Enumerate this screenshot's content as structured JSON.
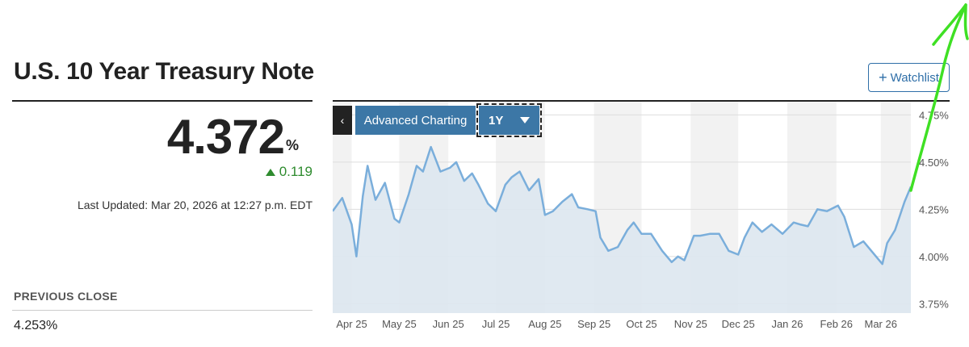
{
  "header": {
    "title": "U.S. 10 Year Treasury Note",
    "watchlist_label": "Watchlist"
  },
  "quote": {
    "price": "4.372",
    "unit": "%",
    "change": "0.119",
    "last_updated": "Last Updated: Mar 20, 2026 at 12:27 p.m. EDT"
  },
  "previous_close": {
    "label": "PREVIOUS CLOSE",
    "value": "4.253%"
  },
  "toolbar": {
    "advanced_label": "Advanced Charting",
    "range_value": "1Y"
  },
  "colors": {
    "line": "#7aaedb",
    "area": "#dde7ef",
    "band": "#f2f2f2",
    "gain": "#2e8b2e",
    "button": "#3c77a6",
    "annotation": "#3fe024"
  },
  "chart_data": {
    "type": "area",
    "title": "",
    "xlabel": "",
    "ylabel": "",
    "ylim": [
      3.7,
      4.82
    ],
    "xlim": [
      "2025-03-20",
      "2026-03-20"
    ],
    "yticks": [
      3.75,
      4.0,
      4.25,
      4.5,
      4.75
    ],
    "ytick_labels": [
      "3.75%",
      "4.00%",
      "4.25%",
      "4.50%",
      "4.75%"
    ],
    "xticks": [
      "2025-04-01",
      "2025-05-01",
      "2025-06-01",
      "2025-07-01",
      "2025-08-01",
      "2025-09-01",
      "2025-10-01",
      "2025-11-01",
      "2025-12-01",
      "2026-01-01",
      "2026-02-01",
      "2026-03-01"
    ],
    "xtick_labels": [
      "Apr 25",
      "May 25",
      "Jun 25",
      "Jul 25",
      "Aug 25",
      "Sep 25",
      "Oct 25",
      "Nov 25",
      "Dec 25",
      "Jan 26",
      "Feb 26",
      "Mar 26"
    ],
    "series": [
      {
        "x": [
          "2025-03-20",
          "2025-03-26",
          "2025-04-01",
          "2025-04-04",
          "2025-04-08",
          "2025-04-11",
          "2025-04-16",
          "2025-04-22",
          "2025-04-28",
          "2025-05-01",
          "2025-05-07",
          "2025-05-12",
          "2025-05-16",
          "2025-05-21",
          "2025-05-27",
          "2025-06-02",
          "2025-06-06",
          "2025-06-11",
          "2025-06-16",
          "2025-06-20",
          "2025-06-26",
          "2025-07-01",
          "2025-07-07",
          "2025-07-11",
          "2025-07-16",
          "2025-07-22",
          "2025-07-28",
          "2025-08-01",
          "2025-08-06",
          "2025-08-12",
          "2025-08-18",
          "2025-08-22",
          "2025-08-28",
          "2025-09-02",
          "2025-09-05",
          "2025-09-10",
          "2025-09-16",
          "2025-09-22",
          "2025-09-26",
          "2025-10-01",
          "2025-10-07",
          "2025-10-14",
          "2025-10-20",
          "2025-10-24",
          "2025-10-28",
          "2025-11-03",
          "2025-11-07",
          "2025-11-13",
          "2025-11-19",
          "2025-11-25",
          "2025-12-01",
          "2025-12-05",
          "2025-12-10",
          "2025-12-16",
          "2025-12-22",
          "2025-12-29",
          "2026-01-05",
          "2026-01-09",
          "2026-01-14",
          "2026-01-20",
          "2026-01-26",
          "2026-02-02",
          "2026-02-06",
          "2026-02-12",
          "2026-02-18",
          "2026-02-24",
          "2026-03-02",
          "2026-03-05",
          "2026-03-10",
          "2026-03-16",
          "2026-03-20"
        ],
        "values": [
          4.24,
          4.31,
          4.17,
          4.0,
          4.32,
          4.48,
          4.3,
          4.39,
          4.2,
          4.18,
          4.33,
          4.48,
          4.45,
          4.58,
          4.45,
          4.47,
          4.5,
          4.4,
          4.44,
          4.38,
          4.28,
          4.24,
          4.38,
          4.42,
          4.45,
          4.35,
          4.41,
          4.22,
          4.24,
          4.29,
          4.33,
          4.26,
          4.25,
          4.24,
          4.1,
          4.03,
          4.05,
          4.14,
          4.18,
          4.12,
          4.12,
          4.03,
          3.97,
          4.0,
          3.98,
          4.11,
          4.11,
          4.12,
          4.12,
          4.03,
          4.01,
          4.1,
          4.18,
          4.13,
          4.17,
          4.12,
          4.18,
          4.17,
          4.16,
          4.25,
          4.24,
          4.27,
          4.21,
          4.05,
          4.08,
          4.02,
          3.96,
          4.07,
          4.14,
          4.29,
          4.37
        ]
      }
    ]
  }
}
